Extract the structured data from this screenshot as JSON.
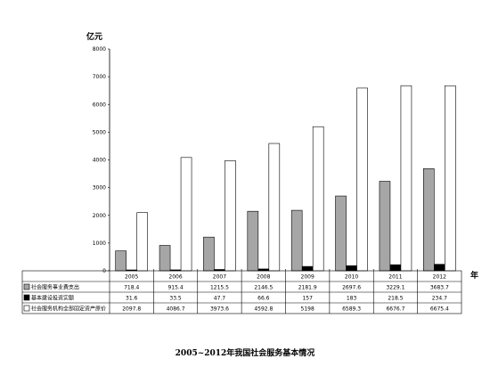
{
  "chart_data": {
    "type": "bar",
    "title": "2005~2012年我国社会服务基本情况",
    "ylabel": "亿元",
    "xlabel": "年",
    "ylim": [
      0,
      8000
    ],
    "yticks": [
      "0",
      "1000",
      "2000",
      "3000",
      "4000",
      "5000",
      "6000",
      "7000",
      "8000"
    ],
    "categories": [
      "2005",
      "2006",
      "2007",
      "2008",
      "2009",
      "2010",
      "2011",
      "2012"
    ],
    "series": [
      {
        "name": "社会服务事业费支出",
        "color": "#a6a6a6",
        "values": [
          718.4,
          915.4,
          1215.5,
          2146.5,
          2181.9,
          2697.6,
          3229.1,
          3683.7
        ],
        "labels": [
          "718.4",
          "915.4",
          "1215.5",
          "2146.5",
          "2181.9",
          "2697.6",
          "3229.1",
          "3683.7"
        ]
      },
      {
        "name": "基本建设投资实额",
        "color": "#000000",
        "values": [
          31.6,
          33.5,
          47.7,
          66.6,
          157,
          183,
          218.5,
          234.7
        ],
        "labels": [
          "31.6",
          "33.5",
          "47.7",
          "66.6",
          "157",
          "183",
          "218.5",
          "234.7"
        ]
      },
      {
        "name": "社会服务机构全部固定资产原价",
        "color": "#ffffff",
        "values": [
          2097.8,
          4086.7,
          3973.6,
          4592.8,
          5198,
          6589.3,
          6676.7,
          6675.4
        ],
        "labels": [
          "2097.8",
          "4086.7",
          "3973.6",
          "4592.8",
          "5198",
          "6589.3",
          "6676.7",
          "6675.4"
        ]
      }
    ],
    "grid": false,
    "legend": "data-table-left"
  }
}
